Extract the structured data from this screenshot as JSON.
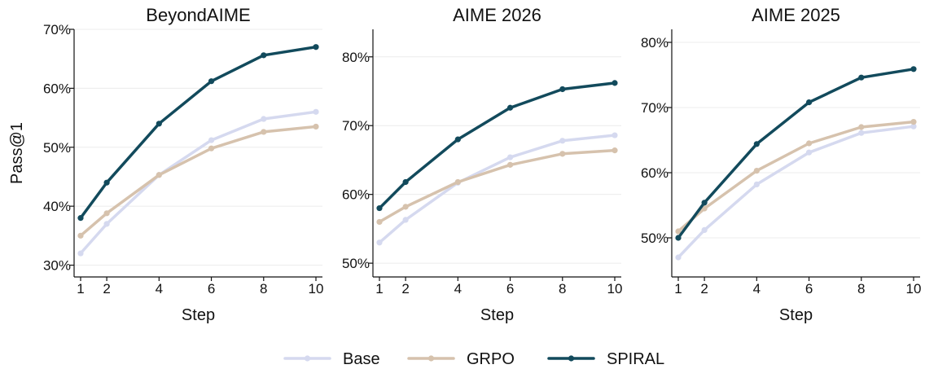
{
  "shared": {
    "ylabel": "Pass@1",
    "xlabel": "Step",
    "legend_placement": "bottom-center"
  },
  "series_styles": [
    {
      "name": "Base",
      "color": "#d5d9ef"
    },
    {
      "name": "GRPO",
      "color": "#d6c2ad"
    },
    {
      "name": "SPIRAL",
      "color": "#124a5c"
    }
  ],
  "chart_data": [
    {
      "type": "line",
      "title": "BeyondAIME",
      "xlabel": "Step",
      "ylabel": "Pass@1",
      "x": [
        1,
        2,
        4,
        6,
        8,
        10
      ],
      "xticks": [
        1,
        2,
        4,
        6,
        8,
        10
      ],
      "ylim": [
        28,
        70
      ],
      "yticks": [
        30,
        40,
        50,
        60,
        70
      ],
      "ytick_labels": [
        "30%",
        "40%",
        "50%",
        "60%",
        "70%"
      ],
      "grid": true,
      "series": [
        {
          "name": "Base",
          "values": [
            32,
            37,
            45.3,
            51.2,
            54.8,
            56
          ]
        },
        {
          "name": "GRPO",
          "values": [
            35,
            38.8,
            45.3,
            49.8,
            52.6,
            53.5
          ]
        },
        {
          "name": "SPIRAL",
          "values": [
            38,
            44,
            54,
            61.2,
            65.6,
            67
          ]
        }
      ]
    },
    {
      "type": "line",
      "title": "AIME 2026",
      "xlabel": "Step",
      "ylabel": "",
      "x": [
        1,
        2,
        4,
        6,
        8,
        10
      ],
      "xticks": [
        1,
        2,
        4,
        6,
        8,
        10
      ],
      "ylim": [
        48,
        84
      ],
      "yticks": [
        50,
        60,
        70,
        80
      ],
      "ytick_labels": [
        "50%",
        "60%",
        "70%",
        "80%"
      ],
      "grid": true,
      "series": [
        {
          "name": "Base",
          "values": [
            53,
            56.3,
            61.7,
            65.4,
            67.8,
            68.6
          ]
        },
        {
          "name": "GRPO",
          "values": [
            56,
            58.2,
            61.8,
            64.3,
            65.9,
            66.4
          ]
        },
        {
          "name": "SPIRAL",
          "values": [
            58,
            61.8,
            68,
            72.6,
            75.3,
            76.2
          ]
        }
      ]
    },
    {
      "type": "line",
      "title": "AIME 2025",
      "xlabel": "Step",
      "ylabel": "",
      "x": [
        1,
        2,
        4,
        6,
        8,
        10
      ],
      "xticks": [
        1,
        2,
        4,
        6,
        8,
        10
      ],
      "ylim": [
        44,
        82
      ],
      "yticks": [
        50,
        60,
        70,
        80
      ],
      "ytick_labels": [
        "50%",
        "60%",
        "70%",
        "80%"
      ],
      "grid": true,
      "series": [
        {
          "name": "Base",
          "values": [
            47,
            51.2,
            58.2,
            63.1,
            66.1,
            67.1
          ]
        },
        {
          "name": "GRPO",
          "values": [
            51,
            54.5,
            60.3,
            64.5,
            67,
            67.8
          ]
        },
        {
          "name": "SPIRAL",
          "values": [
            50,
            55.4,
            64.4,
            70.8,
            74.6,
            75.9
          ]
        }
      ]
    }
  ]
}
